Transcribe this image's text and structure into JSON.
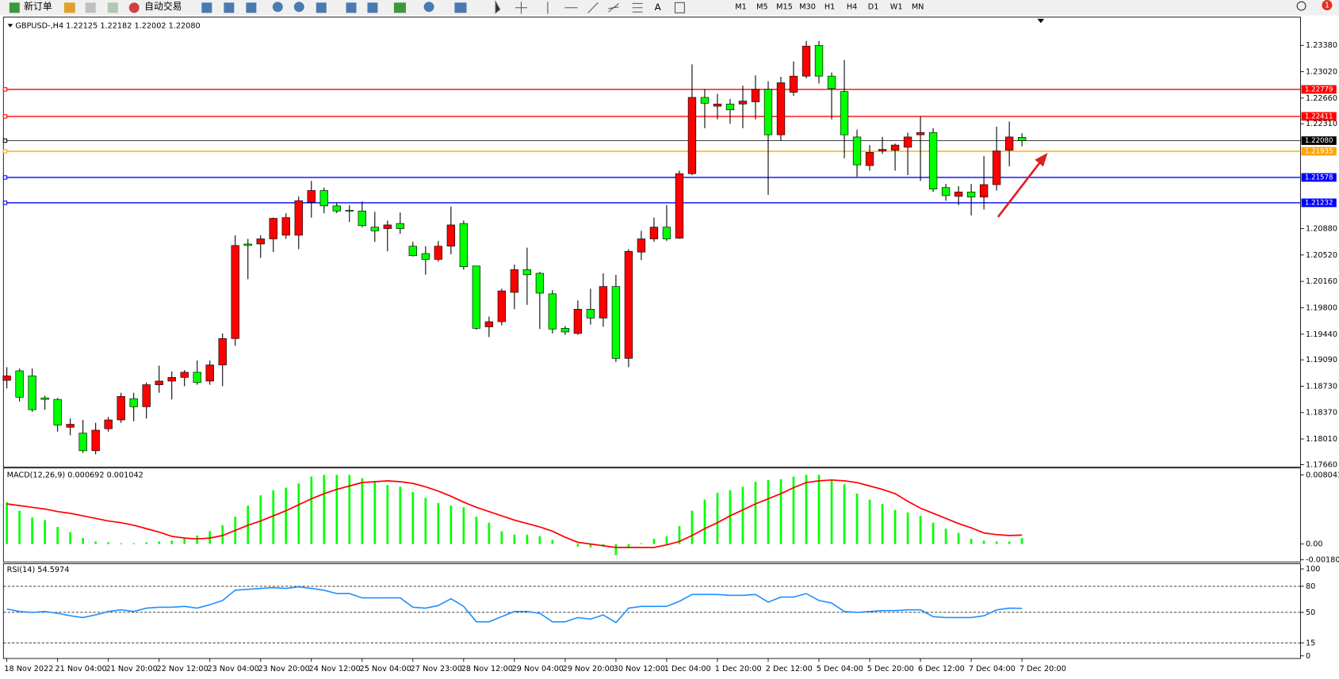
{
  "toolbar": {
    "new_order": "新订单",
    "auto_trading": "自动交易",
    "timeframes": [
      "M1",
      "M5",
      "M15",
      "M30",
      "H1",
      "H4",
      "D1",
      "W1",
      "MN"
    ],
    "alert_count": "1"
  },
  "chart_data": [
    {
      "type": "candlestick",
      "title": "GBPUSD-,H4  1.22125 1.22182 1.22002 1.22080",
      "up_color": "#ff0000",
      "down_color": "#00ff00",
      "categories": [
        "18 Nov 2022",
        null,
        null,
        null,
        "21 Nov 04:00",
        null,
        null,
        null,
        "21 Nov 20:00",
        null,
        null,
        null,
        "22 Nov 12:00",
        null,
        null,
        null,
        "23 Nov 04:00",
        null,
        null,
        null,
        "23 Nov 20:00",
        null,
        null,
        null,
        "24 Nov 12:00",
        null,
        null,
        null,
        "25 Nov 04:00",
        null,
        null,
        null,
        "27 Nov 23:00",
        null,
        null,
        null,
        "28 Nov 12:00",
        null,
        null,
        null,
        "29 Nov 04:00",
        null,
        null,
        null,
        "29 Nov 20:00",
        null,
        null,
        null,
        "30 Nov 12:00",
        null,
        null,
        null,
        "1 Dec 04:00",
        null,
        null,
        null,
        "1 Dec 20:00",
        null,
        null,
        null,
        "2 Dec 12:00",
        null,
        null,
        null,
        "5 Dec 04:00",
        null,
        null,
        null,
        "5 Dec 20:00",
        null,
        null,
        null,
        "6 Dec 12:00",
        null,
        null,
        null,
        "7 Dec 04:00",
        null,
        null,
        null,
        "7 Dec 20:00"
      ],
      "ohlc": [
        [
          1.1881,
          1.1899,
          1.187,
          1.1887
        ],
        [
          1.1894,
          1.1897,
          1.1852,
          1.1858
        ],
        [
          1.1887,
          1.1897,
          1.1838,
          1.1841
        ],
        [
          1.1857,
          1.186,
          1.1841,
          1.1855
        ],
        [
          1.1855,
          1.1857,
          1.1811,
          1.182
        ],
        [
          1.1817,
          1.1829,
          1.1806,
          1.1821
        ],
        [
          1.1809,
          1.1827,
          1.1782,
          1.1785
        ],
        [
          1.1785,
          1.1823,
          1.178,
          1.1813
        ],
        [
          1.1815,
          1.1831,
          1.1811,
          1.1827
        ],
        [
          1.1827,
          1.1864,
          1.1823,
          1.1859
        ],
        [
          1.1856,
          1.1864,
          1.1825,
          1.1845
        ],
        [
          1.1845,
          1.1878,
          1.1829,
          1.1875
        ],
        [
          1.1875,
          1.1901,
          1.1864,
          1.188
        ],
        [
          1.188,
          1.1893,
          1.1855,
          1.1885
        ],
        [
          1.1885,
          1.1895,
          1.1873,
          1.1892
        ],
        [
          1.1892,
          1.1908,
          1.1875,
          1.1878
        ],
        [
          1.188,
          1.1908,
          1.1875,
          1.1902
        ],
        [
          1.1902,
          1.1945,
          1.1873,
          1.1938
        ],
        [
          1.1938,
          1.2079,
          1.1928,
          1.2065
        ],
        [
          1.2067,
          1.2074,
          1.2019,
          1.2065
        ],
        [
          1.2067,
          1.2079,
          1.2048,
          1.2074
        ],
        [
          1.2074,
          1.2103,
          1.2056,
          1.2102
        ],
        [
          1.2079,
          1.2109,
          1.2074,
          1.2103
        ],
        [
          1.2079,
          1.2132,
          1.206,
          1.2126
        ],
        [
          1.2124,
          1.2153,
          1.2103,
          1.214
        ],
        [
          1.214,
          1.2144,
          1.2109,
          1.2119
        ],
        [
          1.2119,
          1.2123,
          1.2109,
          1.2112
        ],
        [
          1.2113,
          1.212,
          1.2097,
          1.2112
        ],
        [
          1.2112,
          1.2125,
          1.209,
          1.2092
        ],
        [
          1.209,
          1.2111,
          1.207,
          1.2085
        ],
        [
          1.2088,
          1.2099,
          1.2057,
          1.2093
        ],
        [
          1.2095,
          1.211,
          1.2081,
          1.2088
        ],
        [
          1.2064,
          1.207,
          1.205,
          1.2051
        ],
        [
          1.2054,
          1.2064,
          1.2025,
          1.2046
        ],
        [
          1.2046,
          1.2071,
          1.2043,
          1.2064
        ],
        [
          1.2064,
          1.2118,
          1.2053,
          1.2093
        ],
        [
          1.2095,
          1.2099,
          1.2032,
          1.2036
        ],
        [
          1.2037,
          1.2037,
          1.195,
          1.1952
        ],
        [
          1.1954,
          1.1968,
          1.194,
          1.1961
        ],
        [
          1.1961,
          1.2006,
          1.1956,
          1.2003
        ],
        [
          1.2001,
          1.2039,
          1.1978,
          1.2032
        ],
        [
          1.2032,
          1.2062,
          1.1984,
          1.2025
        ],
        [
          1.2027,
          1.2029,
          1.1951,
          1.2
        ],
        [
          1.1999,
          1.2004,
          1.1945,
          1.1951
        ],
        [
          1.1952,
          1.1955,
          1.1943,
          1.1947
        ],
        [
          1.1945,
          1.199,
          1.1943,
          1.1978
        ],
        [
          1.1978,
          1.2006,
          1.1957,
          1.1966
        ],
        [
          1.1966,
          1.2027,
          1.1954,
          1.2009
        ],
        [
          1.2009,
          1.2025,
          1.1906,
          1.1911
        ],
        [
          1.1911,
          1.206,
          1.1899,
          1.2057
        ],
        [
          1.2056,
          1.2085,
          1.2045,
          1.2074
        ],
        [
          1.2074,
          1.2103,
          1.207,
          1.209
        ],
        [
          1.209,
          1.212,
          1.2071,
          1.2074
        ],
        [
          1.2075,
          1.2167,
          1.2074,
          1.2163
        ],
        [
          1.2163,
          1.2312,
          1.2161,
          1.2267
        ],
        [
          1.2267,
          1.2278,
          1.2225,
          1.2259
        ],
        [
          1.2255,
          1.2272,
          1.2237,
          1.2258
        ],
        [
          1.2258,
          1.2265,
          1.2231,
          1.225
        ],
        [
          1.2258,
          1.2283,
          1.2225,
          1.2262
        ],
        [
          1.2261,
          1.2297,
          1.2237,
          1.2278
        ],
        [
          1.2278,
          1.2289,
          1.2134,
          1.2216
        ],
        [
          1.2216,
          1.2295,
          1.2208,
          1.2287
        ],
        [
          1.2274,
          1.2316,
          1.2269,
          1.2296
        ],
        [
          1.2296,
          1.2344,
          1.2293,
          1.2337
        ],
        [
          1.2338,
          1.2344,
          1.2286,
          1.2296
        ],
        [
          1.2296,
          1.2301,
          1.2237,
          1.2279
        ],
        [
          1.2275,
          1.2318,
          1.2184,
          1.2216
        ],
        [
          1.2213,
          1.2223,
          1.2159,
          1.2175
        ],
        [
          1.2174,
          1.2202,
          1.2167,
          1.2192
        ],
        [
          1.2194,
          1.2213,
          1.219,
          1.2196
        ],
        [
          1.2195,
          1.2204,
          1.2167,
          1.2202
        ],
        [
          1.2199,
          1.2219,
          1.2161,
          1.2213
        ],
        [
          1.2216,
          1.2241,
          1.2153,
          1.2219
        ],
        [
          1.2219,
          1.2225,
          1.2138,
          1.2142
        ],
        [
          1.2144,
          1.2149,
          1.2126,
          1.2133
        ],
        [
          1.2132,
          1.2146,
          1.212,
          1.2138
        ],
        [
          1.2138,
          1.2149,
          1.2106,
          1.2131
        ],
        [
          1.2131,
          1.2187,
          1.2114,
          1.2148
        ],
        [
          1.2148,
          1.2227,
          1.214,
          1.2194
        ],
        [
          1.2195,
          1.2234,
          1.2173,
          1.2213
        ],
        [
          1.22125,
          1.22182,
          1.22002,
          1.2208
        ]
      ],
      "ylim": [
        1.17637,
        1.23742
      ],
      "yticks": [
        {
          "value": 1.2338,
          "label": "1.23380"
        },
        {
          "value": 1.2302,
          "label": "1.23020"
        },
        {
          "value": 1.2266,
          "label": "1.22660"
        },
        {
          "value": 1.2231,
          "label": "1.22310"
        },
        {
          "value": 1.2088,
          "label": "1.20880"
        },
        {
          "value": 1.2052,
          "label": "1.20520"
        },
        {
          "value": 1.2016,
          "label": "1.20160"
        },
        {
          "value": 1.198,
          "label": "1.19800"
        },
        {
          "value": 1.1944,
          "label": "1.19440"
        },
        {
          "value": 1.1909,
          "label": "1.19090"
        },
        {
          "value": 1.1873,
          "label": "1.18730"
        },
        {
          "value": 1.1837,
          "label": "1.18370"
        },
        {
          "value": 1.1801,
          "label": "1.18010"
        },
        {
          "value": 1.1766,
          "label": "1.17660"
        }
      ],
      "levels": [
        {
          "value": 1.22779,
          "color": "#ff0000"
        },
        {
          "value": 1.22411,
          "color": "#ff0000"
        },
        {
          "value": 1.2208,
          "label": "1.22080",
          "color": "#000000"
        },
        {
          "value": 1.21935,
          "color": "#ffa500"
        },
        {
          "value": 1.21578,
          "color": "#0000ff"
        },
        {
          "value": 1.21232,
          "color": "#0000ff"
        }
      ]
    },
    {
      "type": "macd",
      "title": "MACD(12,26,9) 0.000692 0.001042",
      "series": [
        {
          "color": "#00ff00",
          "values": [
            0.004866,
            0.003873,
            0.003078,
            0.00278,
            0.001986,
            0.00139,
            0.000695,
            0.000298,
            0.000199,
            9.9e-05,
            9.9e-05,
            0.000199,
            0.000298,
            0.000397,
            0.000596,
            0.000993,
            0.00149,
            0.002185,
            0.003178,
            0.004469,
            0.00566,
            0.006256,
            0.006554,
            0.00705,
            0.007845,
            0.008043,
            0.008043,
            0.008043,
            0.007646,
            0.00715,
            0.006852,
            0.006653,
            0.006057,
            0.005362,
            0.004766,
            0.004469,
            0.00427,
            0.003178,
            0.002483,
            0.00149,
            0.001092,
            0.001092,
            0.000894,
            0.000497,
            0,
            -0.000298,
            -0.000397,
            -0.000298,
            -0.001291,
            -0.000497,
            9.9e-05,
            0.000596,
            0.000894,
            0.002085,
            0.003873,
            0.005164,
            0.005958,
            0.006256,
            0.006653,
            0.007249,
            0.007448,
            0.007547,
            0.007845,
            0.008043,
            0.008043,
            0.007448,
            0.006951,
            0.005859,
            0.005164,
            0.004667,
            0.003972,
            0.003674,
            0.003277,
            0.002483,
            0.001787,
            0.001291,
            0.000596,
            0.000397,
            0.000298,
            0.000298,
            0.000692
          ]
        },
        {
          "color": "#ff0000",
          "values": [
            0.004667,
            0.004469,
            0.00427,
            0.004071,
            0.003773,
            0.003575,
            0.003277,
            0.002979,
            0.002681,
            0.002483,
            0.002185,
            0.001787,
            0.00139,
            0.000894,
            0.000695,
            0.000596,
            0.000695,
            0.000993,
            0.001589,
            0.002185,
            0.002681,
            0.003277,
            0.003873,
            0.004568,
            0.005263,
            0.005859,
            0.006355,
            0.006752,
            0.00715,
            0.007249,
            0.007348,
            0.007249,
            0.00705,
            0.006653,
            0.006157,
            0.005561,
            0.004866,
            0.00427,
            0.003773,
            0.003277,
            0.00278,
            0.002383,
            0.001986,
            0.00149,
            0.000794,
            0.000199,
            0,
            -0.000199,
            -0.000397,
            -0.000397,
            -0.000397,
            -0.000397,
            -9.9e-05,
            0.000298,
            0.000993,
            0.001787,
            0.002483,
            0.003277,
            0.003972,
            0.004667,
            0.005263,
            0.005859,
            0.006554,
            0.00715,
            0.007348,
            0.007448,
            0.007348,
            0.00715,
            0.006752,
            0.006355,
            0.005859,
            0.004965,
            0.004171,
            0.003575,
            0.002979,
            0.002383,
            0.001887,
            0.001291,
            0.001092,
            0.000993,
            0.001042
          ]
        }
      ],
      "ylim": [
        -0.001986,
        0.008838
      ],
      "yticks": [
        0.008043,
        {
          "value": 0,
          "label": "0.00"
        },
        -0.001807
      ]
    },
    {
      "type": "line",
      "title": "RSI(14) 54.5974",
      "series": [
        {
          "color": "#1e90ff",
          "values": [
            53.9,
            51.0,
            50.0,
            51.0,
            49.0,
            46.1,
            44.1,
            47.1,
            51.0,
            52.9,
            51.0,
            54.9,
            55.9,
            55.9,
            56.9,
            54.9,
            58.8,
            63.7,
            75.5,
            76.5,
            77.5,
            78.4,
            77.5,
            79.4,
            77.5,
            75.5,
            71.6,
            71.6,
            66.7,
            66.7,
            66.7,
            66.7,
            55.9,
            54.9,
            57.8,
            65.7,
            56.9,
            39.2,
            39.2,
            45.1,
            51.0,
            51.0,
            49.0,
            39.2,
            39.2,
            44.1,
            42.2,
            47.1,
            38.2,
            54.9,
            56.9,
            56.9,
            56.9,
            62.7,
            70.6,
            70.6,
            70.6,
            69.6,
            69.6,
            70.6,
            61.8,
            67.6,
            67.6,
            71.6,
            63.7,
            60.8,
            51.0,
            50.0,
            51.0,
            52.0,
            52.0,
            52.9,
            52.9,
            45.1,
            44.1,
            44.1,
            44.1,
            46.1,
            52.9,
            54.9,
            54.6
          ]
        }
      ],
      "ylim": [
        -2,
        106
      ],
      "yticks": [
        100,
        80,
        50,
        15,
        0
      ],
      "levels": [
        80,
        50,
        15
      ]
    }
  ]
}
